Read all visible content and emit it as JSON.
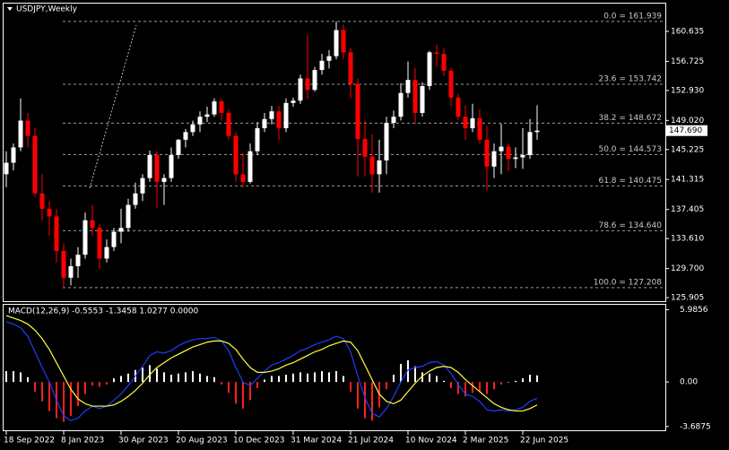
{
  "chart_data": [
    {
      "type": "candlestick",
      "title": "USDJPY,Weekly",
      "categories": [
        "18 Sep 2022",
        null,
        null,
        null,
        null,
        null,
        null,
        null,
        "8 Jan 2023",
        null,
        null,
        null,
        null,
        null,
        null,
        null,
        "30 Apr 2023",
        null,
        null,
        null,
        null,
        null,
        null,
        null,
        "20 Aug 2023",
        null,
        null,
        null,
        null,
        null,
        null,
        null,
        "10 Dec 2023",
        null,
        null,
        null,
        null,
        null,
        null,
        null,
        "31 Mar 2024",
        null,
        null,
        null,
        null,
        null,
        null,
        null,
        "21 Jul 2024",
        null,
        null,
        null,
        null,
        null,
        null,
        null,
        "10 Nov 2024",
        null,
        null,
        null,
        null,
        null,
        null,
        null,
        "2 Mar 2025",
        null,
        null,
        null,
        null,
        null,
        null,
        null,
        "22 Jun 2025",
        null,
        null
      ],
      "open": [
        142.0,
        143.5,
        145.5,
        149.0,
        147.0,
        139.5,
        137.5,
        136.5,
        132.0,
        128.5,
        130.0,
        131.5,
        136.0,
        135.0,
        131.0,
        132.5,
        134.5,
        135.0,
        138.0,
        139.5,
        141.5,
        144.5,
        141.0,
        141.5,
        144.5,
        146.5,
        147.5,
        148.5,
        149.5,
        149.8,
        151.5,
        150.0,
        147.0,
        142.0,
        141.0,
        145.0,
        148.0,
        149.2,
        150.2,
        148.0,
        151.3,
        151.6,
        154.5,
        153.0,
        155.6,
        156.8,
        157.4,
        160.8,
        157.9,
        153.8,
        146.6,
        144.3,
        142.0,
        143.8,
        148.7,
        149.5,
        152.6,
        154.3,
        150.0,
        153.5,
        157.9,
        157.7,
        155.5,
        152.0,
        149.5,
        148.0,
        149.3,
        146.5,
        143.0,
        145.0,
        145.6,
        144.0,
        144.2,
        144.5,
        147.5
      ],
      "high": [
        145.0,
        146.0,
        151.9,
        150.0,
        148.0,
        142.0,
        138.5,
        137.5,
        133.0,
        131.0,
        132.5,
        137.0,
        138.0,
        135.5,
        133.5,
        135.0,
        137.5,
        138.8,
        140.9,
        142.0,
        145.1,
        145.0,
        142.0,
        145.5,
        146.6,
        147.9,
        149.0,
        150.2,
        150.8,
        151.9,
        151.9,
        150.5,
        147.5,
        144.8,
        146.0,
        148.8,
        150.0,
        150.9,
        150.9,
        151.9,
        152.0,
        155.0,
        160.2,
        156.0,
        157.7,
        158.2,
        161.9,
        161.5,
        158.5,
        154.5,
        149.0,
        147.2,
        146.5,
        149.5,
        150.3,
        153.9,
        156.7,
        155.9,
        154.0,
        158.1,
        158.9,
        158.5,
        155.9,
        152.5,
        151.0,
        151.2,
        150.5,
        148.3,
        146.0,
        148.6,
        146.0,
        145.5,
        148.0,
        149.2,
        151.0
      ],
      "low": [
        140.3,
        142.5,
        145.0,
        145.5,
        139.0,
        136.0,
        134.0,
        130.5,
        127.2,
        127.5,
        128.5,
        131.0,
        134.0,
        129.7,
        130.5,
        132.0,
        133.0,
        134.5,
        137.5,
        138.5,
        141.0,
        137.6,
        138.0,
        141.0,
        144.0,
        145.5,
        147.0,
        147.5,
        148.8,
        149.5,
        149.0,
        146.5,
        141.0,
        140.3,
        140.8,
        144.5,
        147.5,
        148.5,
        146.5,
        147.5,
        150.8,
        151.2,
        151.8,
        152.8,
        155.0,
        155.8,
        157.0,
        157.0,
        151.9,
        141.7,
        141.7,
        139.6,
        139.6,
        142.0,
        148.0,
        149.0,
        152.0,
        148.5,
        149.5,
        153.0,
        156.0,
        154.8,
        150.9,
        149.0,
        146.5,
        147.5,
        146.0,
        139.9,
        141.5,
        142.0,
        142.4,
        142.8,
        142.7,
        144.0,
        146.5
      ],
      "close": [
        143.5,
        145.5,
        149.0,
        147.0,
        139.5,
        137.5,
        136.5,
        132.0,
        128.5,
        130.0,
        131.5,
        136.0,
        135.0,
        131.0,
        132.5,
        134.5,
        135.0,
        138.0,
        139.5,
        141.5,
        144.5,
        141.0,
        141.5,
        144.5,
        146.5,
        147.5,
        148.5,
        149.5,
        149.8,
        151.5,
        150.0,
        147.0,
        142.0,
        141.0,
        145.0,
        148.0,
        149.2,
        150.2,
        148.0,
        151.3,
        151.6,
        154.5,
        153.0,
        155.6,
        156.8,
        157.4,
        160.8,
        157.9,
        153.8,
        146.6,
        144.3,
        142.0,
        143.8,
        148.7,
        149.5,
        152.6,
        154.3,
        150.0,
        153.5,
        157.9,
        157.7,
        155.5,
        152.0,
        149.5,
        148.0,
        149.3,
        146.5,
        143.0,
        145.0,
        145.6,
        144.0,
        144.2,
        144.5,
        147.5,
        147.69
      ],
      "up_color": "#ffffff",
      "down_color": "#ff0000",
      "ylim": [
        125.44,
        164.26
      ],
      "yticks": [
        {
          "value": 125.905,
          "label": "125.905"
        },
        {
          "value": 129.7,
          "label": "129.700"
        },
        {
          "value": 133.61,
          "label": "133.610"
        },
        {
          "value": 137.405,
          "label": "137.405"
        },
        {
          "value": 141.315,
          "label": "141.315"
        },
        {
          "value": 145.225,
          "label": "145.225"
        },
        {
          "value": 149.02,
          "label": "149.020"
        },
        {
          "value": 152.93,
          "label": "152.930"
        },
        {
          "value": 156.725,
          "label": "156.725"
        },
        {
          "value": 160.635,
          "label": "160.635"
        }
      ],
      "fib_levels": [
        {
          "value": 161.939,
          "label": "0.0 = 161.939"
        },
        {
          "value": 153.742,
          "label": "23.6 = 153.742"
        },
        {
          "value": 148.672,
          "label": "38.2 = 148.672"
        },
        {
          "value": 144.573,
          "label": "50.0 = 144.573"
        },
        {
          "value": 140.475,
          "label": "61.8 = 140.475"
        },
        {
          "value": 134.64,
          "label": "78.6 = 134.640"
        },
        {
          "value": 127.208,
          "label": "100.0 = 127.208"
        }
      ],
      "last_price": {
        "value": 147.69,
        "label": "147.690"
      }
    },
    {
      "type": "macd",
      "title": "MACD(12,26,9) -0.5553 -1.3458 1.0277 0.0000",
      "histogram": {
        "up_color": "#ffffff",
        "down_color": "#ff2020",
        "values": [
          0.9,
          0.9,
          0.8,
          0.4,
          -0.8,
          -1.6,
          -2.4,
          -3.0,
          -3.3,
          -2.8,
          -2.0,
          -1.0,
          -0.3,
          -0.4,
          -0.2,
          0.3,
          0.5,
          0.7,
          1.0,
          1.2,
          1.4,
          1.1,
          0.8,
          0.6,
          0.7,
          0.8,
          0.9,
          0.7,
          0.5,
          0.4,
          -0.2,
          -0.9,
          -1.8,
          -2.2,
          -1.5,
          -0.5,
          0.2,
          0.5,
          0.5,
          0.6,
          0.7,
          0.8,
          0.7,
          0.8,
          0.9,
          0.8,
          0.9,
          0.5,
          -0.8,
          -2.2,
          -3.0,
          -3.2,
          -2.1,
          -0.6,
          0.6,
          1.5,
          1.8,
          1.3,
          0.8,
          0.7,
          0.5,
          0.1,
          -0.5,
          -1.0,
          -1.2,
          -0.9,
          -0.8,
          -1.0,
          -0.6,
          -0.2,
          0.0,
          0.1,
          0.3,
          0.6,
          0.55
        ]
      },
      "series": [
        {
          "color": "#1e3cff",
          "values": [
            5.0,
            4.8,
            4.5,
            3.8,
            2.5,
            1.2,
            0.0,
            -1.5,
            -2.8,
            -3.2,
            -3.0,
            -2.4,
            -2.0,
            -2.2,
            -2.0,
            -1.5,
            -1.0,
            -0.3,
            0.5,
            1.3,
            2.2,
            2.5,
            2.4,
            2.6,
            3.0,
            3.3,
            3.5,
            3.6,
            3.6,
            3.7,
            3.4,
            2.6,
            1.2,
            0.0,
            -0.3,
            0.3,
            0.9,
            1.4,
            1.6,
            1.9,
            2.2,
            2.6,
            2.8,
            3.1,
            3.3,
            3.5,
            3.8,
            3.6,
            2.5,
            0.5,
            -1.3,
            -2.6,
            -2.9,
            -2.2,
            -1.2,
            0.0,
            1.0,
            1.2,
            1.3,
            1.6,
            1.7,
            1.4,
            0.7,
            -0.2,
            -1.0,
            -1.2,
            -1.6,
            -2.3,
            -2.4,
            -2.3,
            -2.4,
            -2.3,
            -2.1,
            -1.6,
            -1.35
          ]
        },
        {
          "color": "#ffff40",
          "values": [
            5.5,
            5.3,
            5.1,
            4.8,
            4.3,
            3.6,
            2.7,
            1.6,
            0.5,
            -0.6,
            -1.4,
            -1.8,
            -2.0,
            -2.0,
            -2.0,
            -1.9,
            -1.6,
            -1.2,
            -0.7,
            -0.1,
            0.6,
            1.2,
            1.6,
            2.0,
            2.3,
            2.6,
            2.9,
            3.1,
            3.3,
            3.4,
            3.4,
            3.2,
            2.7,
            1.9,
            1.2,
            0.8,
            0.8,
            0.9,
            1.1,
            1.4,
            1.6,
            1.9,
            2.2,
            2.5,
            2.7,
            3.0,
            3.2,
            3.4,
            3.3,
            2.6,
            1.4,
            0.2,
            -1.0,
            -1.6,
            -1.8,
            -1.5,
            -0.8,
            -0.1,
            0.5,
            0.9,
            1.2,
            1.3,
            1.2,
            0.8,
            0.2,
            -0.3,
            -0.8,
            -1.3,
            -1.8,
            -2.1,
            -2.3,
            -2.4,
            -2.4,
            -2.2,
            -1.9
          ]
        }
      ],
      "ylim": [
        -4.0,
        6.4
      ],
      "yticks": [
        5.9856,
        {
          "value": 0,
          "label": "0.00"
        },
        -3.6875
      ]
    }
  ]
}
